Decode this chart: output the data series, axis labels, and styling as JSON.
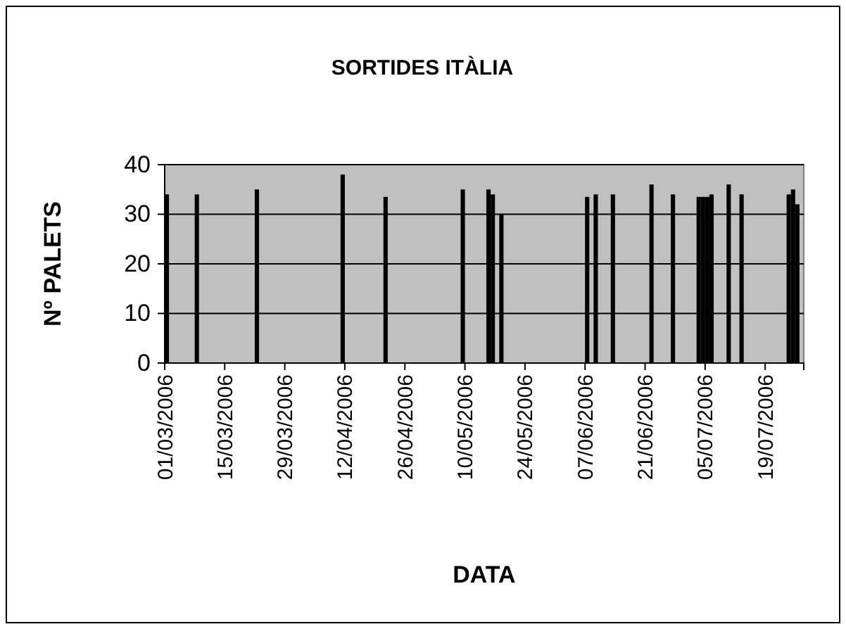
{
  "chart_data": {
    "type": "bar",
    "title": "SORTIDES ITÀLIA",
    "xlabel": "DATA",
    "ylabel": "Nº PALETS",
    "x": [
      "2006-03-01",
      "2006-03-08",
      "2006-03-22",
      "2006-04-11",
      "2006-04-21",
      "2006-05-09",
      "2006-05-15",
      "2006-05-16",
      "2006-05-18",
      "2006-06-07",
      "2006-06-09",
      "2006-06-13",
      "2006-06-22",
      "2006-06-27",
      "2006-07-03",
      "2006-07-04",
      "2006-07-05",
      "2006-07-06",
      "2006-07-10",
      "2006-07-13",
      "2006-07-24",
      "2006-07-25",
      "2006-07-26"
    ],
    "values": [
      34,
      34,
      35,
      38,
      33.5,
      35,
      35,
      34,
      30,
      33.5,
      34,
      34,
      36,
      34,
      33.5,
      33.5,
      33.5,
      34,
      36,
      34,
      34,
      35,
      32
    ],
    "color": "#000000",
    "xlim": [
      "2006-03-01",
      "2006-07-28"
    ],
    "xticks": [
      {
        "value": "2006-03-01",
        "label": "01/03/2006"
      },
      {
        "value": "2006-03-15",
        "label": "15/03/2006"
      },
      {
        "value": "2006-03-29",
        "label": "29/03/2006"
      },
      {
        "value": "2006-04-12",
        "label": "12/04/2006"
      },
      {
        "value": "2006-04-26",
        "label": "26/04/2006"
      },
      {
        "value": "2006-05-10",
        "label": "10/05/2006"
      },
      {
        "value": "2006-05-24",
        "label": "24/05/2006"
      },
      {
        "value": "2006-06-07",
        "label": "07/06/2006"
      },
      {
        "value": "2006-06-21",
        "label": "21/06/2006"
      },
      {
        "value": "2006-07-05",
        "label": "05/07/2006"
      },
      {
        "value": "2006-07-19",
        "label": "19/07/2006"
      }
    ],
    "ylim": [
      0,
      40
    ],
    "yticks": [
      0,
      10,
      20,
      30,
      40
    ],
    "grid": "y"
  }
}
